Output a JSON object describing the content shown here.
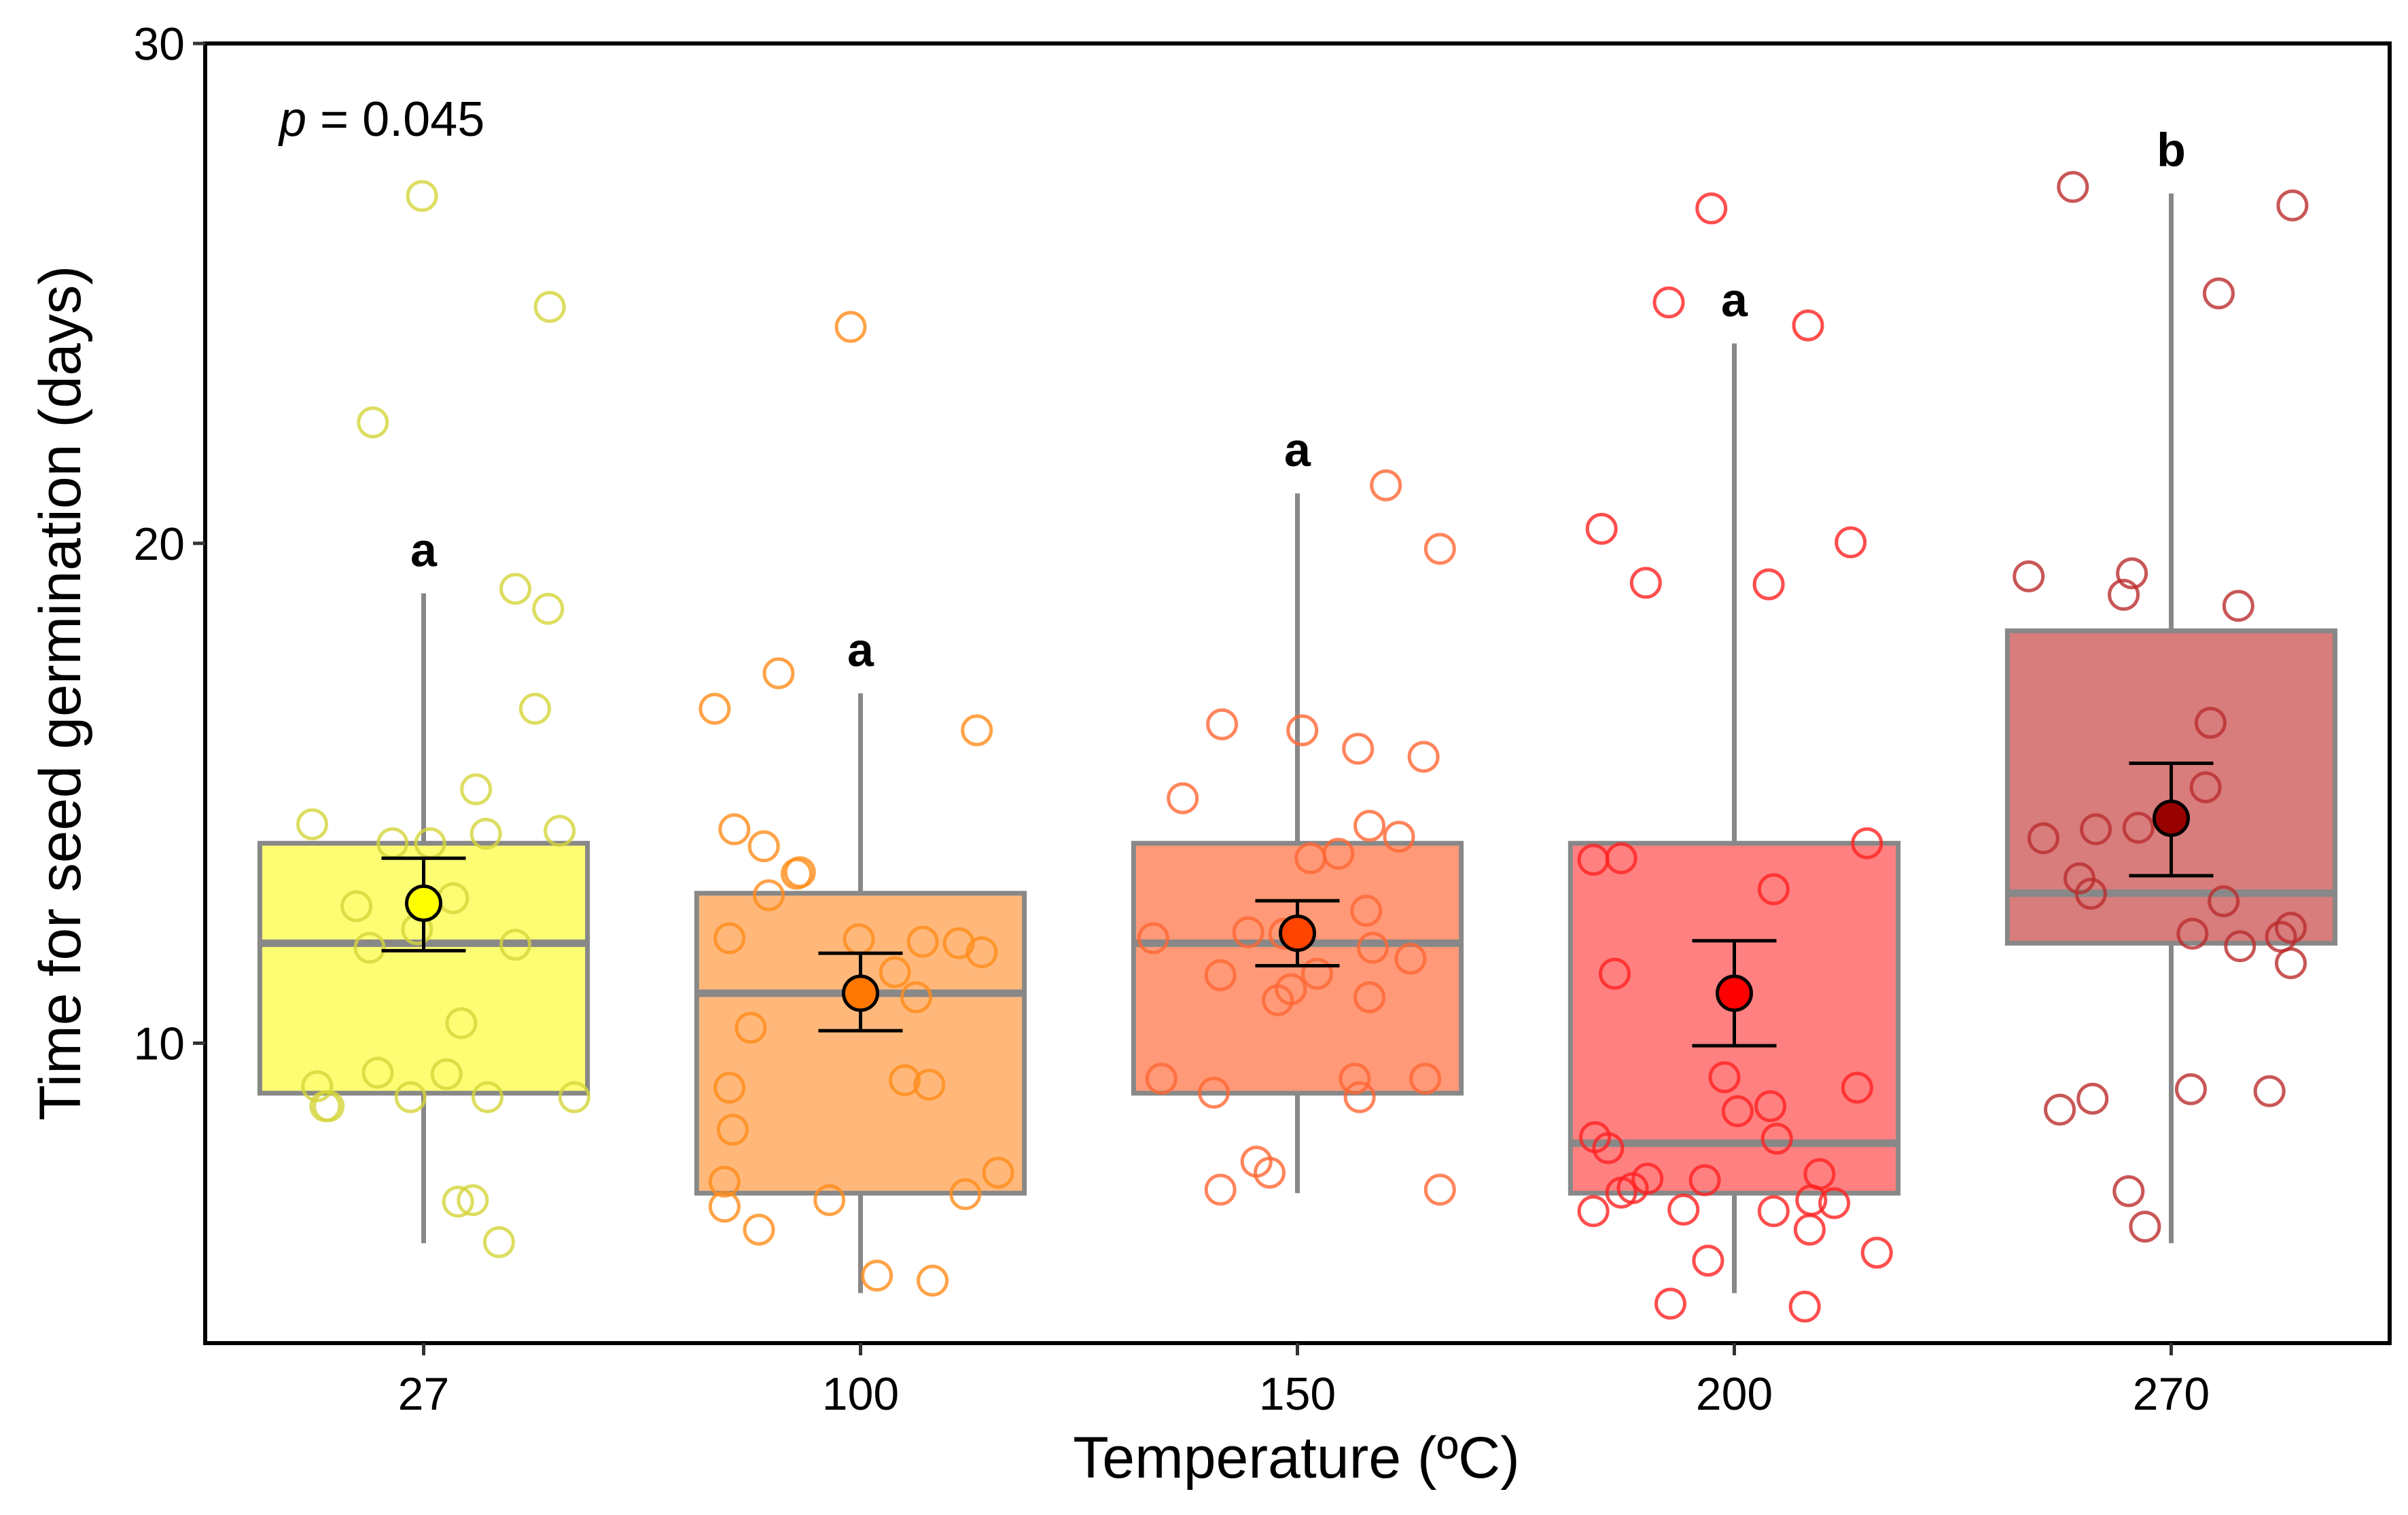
{
  "chart_data": {
    "type": "box",
    "xlabel": "Temperature (ºC)",
    "ylabel": "Time for seed germination (days)",
    "ylim": [
      4,
      30
    ],
    "yticks": [
      10,
      20,
      30
    ],
    "grid": false,
    "annotation": {
      "p_symbol": "p",
      "p_text": " = 0.045"
    },
    "categories": [
      "27",
      "100",
      "150",
      "200",
      "270"
    ],
    "groups": [
      {
        "category": "27",
        "letter": "a",
        "box_fill": "#FDFD74",
        "point_color": "#D4D43A",
        "mean_fill": "#FFFF00",
        "q1": 9.0,
        "median": 12.0,
        "q3": 14.0,
        "whisker_low": 6.0,
        "whisker_high": 19.0,
        "mean": 12.8,
        "err_low": 11.85,
        "err_high": 13.7,
        "points": [
          26.95,
          24.73,
          22.42,
          19.09,
          18.69,
          16.69,
          15.08,
          14.38,
          14.19,
          14.25,
          14.0,
          14.0,
          12.74,
          12.9,
          12.28,
          11.91,
          11.97,
          10.4,
          9.41,
          9.38,
          9.14,
          8.74,
          8.74,
          8.92,
          8.92,
          8.92,
          6.83,
          6.86,
          6.02
        ]
      },
      {
        "category": "100",
        "letter": "a",
        "box_fill": "#FFB87A",
        "point_color": "#FF8C1A",
        "mean_fill": "#FF7700",
        "q1": 7.0,
        "median": 11.0,
        "q3": 13.0,
        "whisker_low": 5.0,
        "whisker_high": 17.0,
        "mean": 11.0,
        "err_low": 10.25,
        "err_high": 11.8,
        "points": [
          24.33,
          17.4,
          16.69,
          16.26,
          14.28,
          13.94,
          13.39,
          13.42,
          12.96,
          12.1,
          12.08,
          12.03,
          12.0,
          11.82,
          11.42,
          10.92,
          10.31,
          9.26,
          9.17,
          9.11,
          8.27,
          7.23,
          7.41,
          6.98,
          6.73,
          6.86,
          6.27,
          5.35,
          5.25
        ]
      },
      {
        "category": "150",
        "letter": "a",
        "box_fill": "#FF9977",
        "point_color": "#FF6633",
        "mean_fill": "#FF4400",
        "q1": 9.0,
        "median": 12.0,
        "q3": 14.0,
        "whisker_low": 7.0,
        "whisker_high": 21.0,
        "mean": 12.2,
        "err_low": 11.55,
        "err_high": 12.85,
        "points": [
          21.16,
          19.89,
          16.38,
          16.26,
          15.89,
          15.73,
          14.9,
          14.35,
          14.13,
          13.79,
          13.7,
          12.65,
          12.22,
          12.1,
          12.19,
          11.91,
          11.69,
          11.36,
          11.39,
          11.08,
          10.86,
          10.92,
          9.29,
          9.29,
          9.29,
          9.01,
          8.92,
          7.63,
          7.41,
          7.07,
          7.07
        ]
      },
      {
        "category": "200",
        "letter": "a",
        "box_fill": "#FF8080",
        "point_color": "#FF2222",
        "mean_fill": "#FF0000",
        "q1": 7.0,
        "median": 8.0,
        "q3": 14.0,
        "whisker_low": 5.0,
        "whisker_high": 24.0,
        "mean": 11.0,
        "err_low": 9.95,
        "err_high": 12.05,
        "points": [
          26.7,
          24.82,
          24.36,
          20.29,
          20.02,
          19.21,
          19.18,
          14.0,
          13.67,
          13.7,
          13.08,
          11.39,
          9.32,
          9.11,
          8.64,
          8.74,
          8.09,
          8.12,
          7.9,
          7.29,
          7.26,
          7.38,
          7.01,
          7.1,
          6.64,
          6.86,
          6.8,
          6.64,
          6.67,
          6.27,
          5.81,
          5.65,
          4.79,
          4.73
        ]
      },
      {
        "category": "270",
        "letter": "b",
        "box_fill": "#D87C7C",
        "point_color": "#BB2D2D",
        "mean_fill": "#990000",
        "q1": 12.0,
        "median": 13.0,
        "q3": 18.25,
        "whisker_low": 6.0,
        "whisker_high": 27.0,
        "mean": 14.5,
        "err_low": 13.35,
        "err_high": 15.6,
        "points": [
          27.13,
          26.76,
          25.0,
          19.34,
          19.4,
          18.97,
          18.75,
          16.41,
          15.12,
          14.1,
          14.28,
          14.31,
          13.3,
          12.99,
          12.84,
          12.19,
          12.31,
          12.13,
          11.94,
          11.6,
          9.08,
          8.89,
          8.67,
          9.04,
          7.04,
          6.33
        ]
      }
    ]
  }
}
